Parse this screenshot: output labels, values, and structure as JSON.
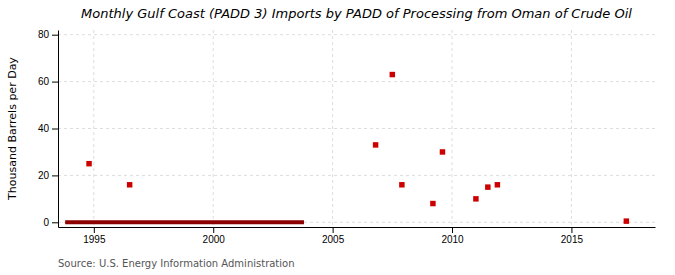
{
  "chart_data": {
    "type": "scatter",
    "title": "Monthly Gulf Coast (PADD 3) Imports by PADD of Processing from Oman of Crude Oil",
    "y_label": "Thousand Barrels per Day",
    "source": "Source: U.S. Energy Information Administration",
    "xlim": [
      1993.5,
      2018.5
    ],
    "ylim": [
      -2,
      82
    ],
    "xticks": [
      1995,
      2000,
      2005,
      2010,
      2015
    ],
    "yticks": [
      0,
      20,
      40,
      60,
      80
    ],
    "grid": true,
    "series": [
      {
        "type": "line",
        "color": "#8b0000",
        "x": [
          1993.8,
          2003.8
        ],
        "values": [
          0,
          0
        ]
      },
      {
        "type": "scatter",
        "color": "#cc0000",
        "marker": "square",
        "x": [
          1994.8,
          1996.5,
          2006.8,
          2007.5,
          2007.9,
          2009.2,
          2009.6,
          2011.0,
          2011.5,
          2011.9,
          2017.3
        ],
        "values": [
          25,
          16,
          33,
          63,
          16,
          8,
          30,
          10,
          15,
          16,
          0.5
        ]
      }
    ]
  }
}
